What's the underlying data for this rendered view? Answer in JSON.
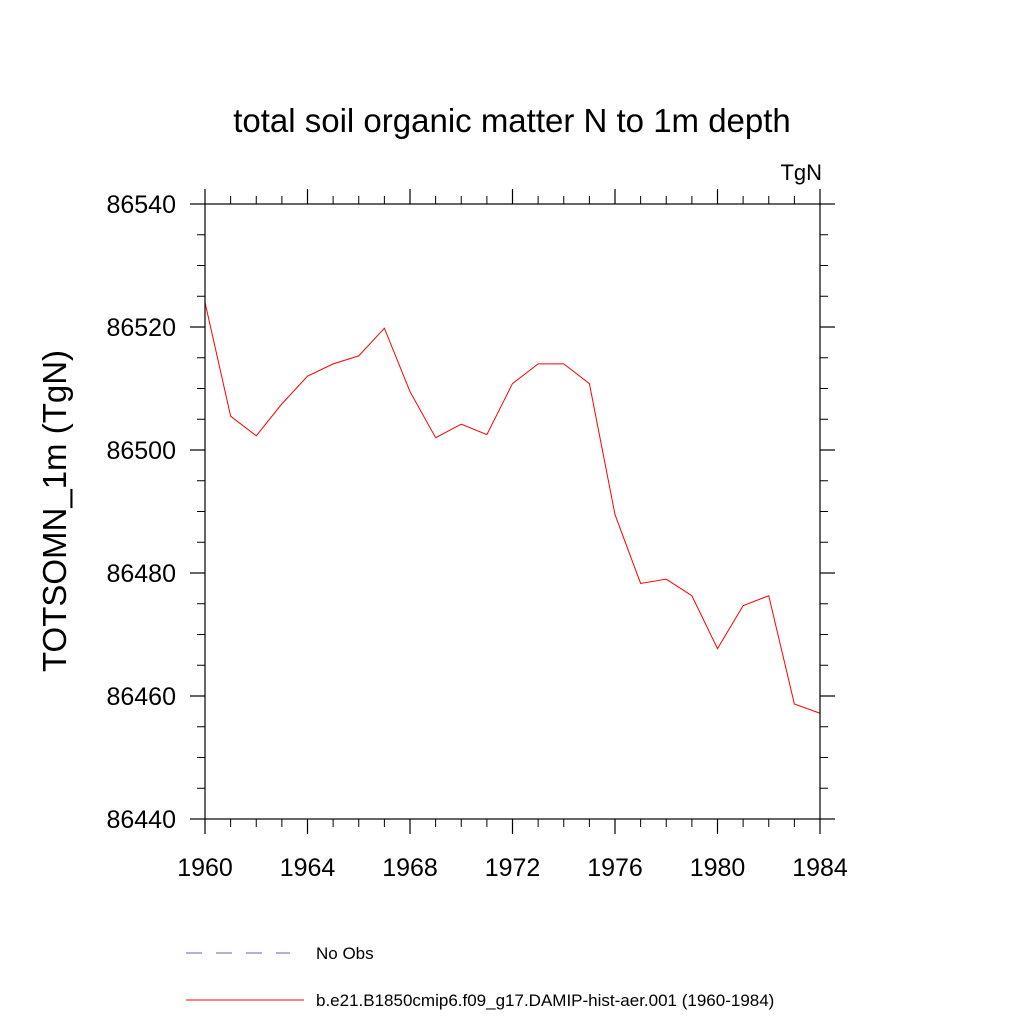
{
  "chart_data": {
    "type": "line",
    "title": "total soil organic matter N to 1m depth",
    "units_label": "TgN",
    "ylabel": "TOTSOMN_1m  (TgN)",
    "xlabel": "",
    "xlim": [
      1960,
      1984
    ],
    "ylim": [
      86440,
      86540
    ],
    "x_ticks": [
      1960,
      1964,
      1968,
      1972,
      1976,
      1980,
      1984
    ],
    "x_tick_labels": [
      "1960",
      "1964",
      "1968",
      "1972",
      "1976",
      "1980",
      "1984"
    ],
    "y_ticks": [
      86440,
      86460,
      86480,
      86500,
      86520,
      86540
    ],
    "y_tick_labels": [
      "86440",
      "86460",
      "86480",
      "86500",
      "86520",
      "86540"
    ],
    "x_minor_step": 1,
    "y_minor_step": 5,
    "grid": false,
    "legend_position": "bottom",
    "x": [
      1960,
      1961,
      1962,
      1963,
      1964,
      1965,
      1966,
      1967,
      1968,
      1969,
      1970,
      1971,
      1972,
      1973,
      1974,
      1975,
      1976,
      1977,
      1978,
      1979,
      1980,
      1981,
      1982,
      1983,
      1984
    ],
    "series": [
      {
        "name": "b.e21.B1850cmip6.f09_g17.DAMIP-hist-aer.001 (1960-1984)",
        "color": "#ff0000",
        "style": "solid",
        "values": [
          86524,
          86505.5,
          86502.3,
          86507.5,
          86512,
          86514,
          86515.3,
          86519.8,
          86509.5,
          86502,
          86504.2,
          86502.5,
          86510.8,
          86514,
          86514,
          86510.8,
          86489.5,
          86478.3,
          86479,
          86476.3,
          86467.7,
          86474.7,
          86476.3,
          86458.7,
          86457.2
        ]
      }
    ],
    "legend": [
      {
        "label": "No Obs",
        "color": "#6a5acd",
        "style": "dashed"
      },
      {
        "label": "b.e21.B1850cmip6.f09_g17.DAMIP-hist-aer.001 (1960-1984)",
        "color": "#ff0000",
        "style": "solid"
      }
    ]
  }
}
